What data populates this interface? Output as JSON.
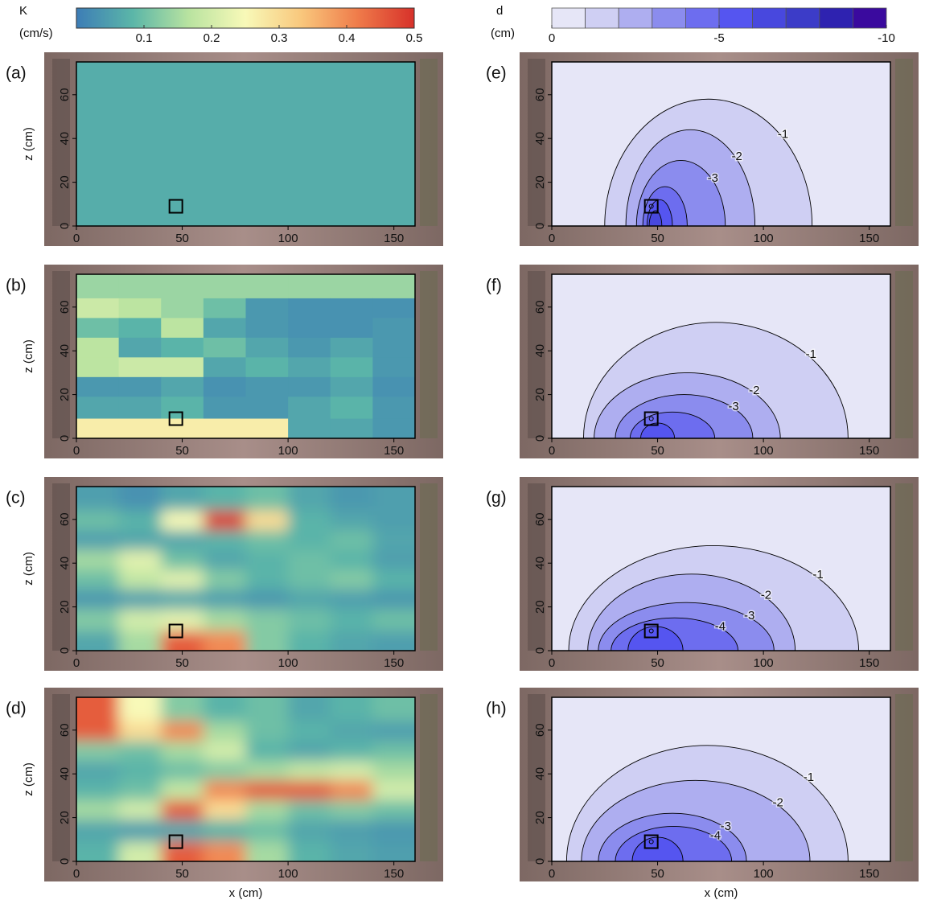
{
  "chart_data": [
    {
      "type": "colorbar",
      "title": "K",
      "unit": "(cm/s)",
      "lim": [
        0,
        0.5
      ],
      "ticks": [
        0.1,
        0.2,
        0.3,
        0.4,
        0.5
      ],
      "colors": [
        "#3d7db6",
        "#5bb6a8",
        "#b9e3a0",
        "#f8f9b8",
        "#f9c77c",
        "#ef7b4a",
        "#d7312a"
      ]
    },
    {
      "type": "colorbar",
      "title": "d",
      "unit": "(cm)",
      "lim": [
        0,
        -10
      ],
      "ticks": [
        0,
        -5,
        -10
      ],
      "boundaries": [
        0,
        -1,
        -2,
        -3,
        -4,
        -5,
        -6,
        -7,
        -8,
        -9,
        -10
      ],
      "colors": [
        "#e6e6f7",
        "#cfcff3",
        "#aeaef0",
        "#8b8cee",
        "#6d6def",
        "#5555f0",
        "#4848de",
        "#3c3cc8",
        "#2e22b0",
        "#3a0a9e"
      ]
    },
    {
      "type": "heatmap",
      "label": "(a)",
      "ylabel": "z (cm)",
      "xlim": [
        0,
        160
      ],
      "ylim": [
        0,
        75
      ],
      "xticks": [
        0,
        50,
        100,
        150
      ],
      "yticks": [
        0,
        20,
        40,
        60
      ],
      "x": [
        0,
        160
      ],
      "z": [
        75,
        0
      ],
      "values": [
        [
          0.07
        ]
      ],
      "source": {
        "x": 47,
        "z": 9
      }
    },
    {
      "type": "heatmap",
      "label": "(b)",
      "ylabel": "z (cm)",
      "xlim": [
        0,
        160
      ],
      "ylim": [
        0,
        75
      ],
      "xticks": [
        0,
        50,
        100,
        150
      ],
      "yticks": [
        0,
        20,
        40,
        60
      ],
      "x": [
        0,
        20,
        40,
        60,
        80,
        100,
        120,
        140,
        160
      ],
      "z": [
        75,
        64,
        55,
        46,
        37,
        28,
        19,
        9,
        0
      ],
      "values": [
        [
          0.14,
          0.14,
          0.14,
          0.14,
          0.14,
          0.14,
          0.14,
          0.14
        ],
        [
          0.19,
          0.17,
          0.14,
          0.1,
          0.04,
          0.03,
          0.03,
          0.03
        ],
        [
          0.1,
          0.08,
          0.17,
          0.06,
          0.04,
          0.03,
          0.03,
          0.04
        ],
        [
          0.17,
          0.06,
          0.08,
          0.1,
          0.06,
          0.04,
          0.06,
          0.04
        ],
        [
          0.17,
          0.19,
          0.19,
          0.06,
          0.08,
          0.06,
          0.08,
          0.04
        ],
        [
          0.04,
          0.04,
          0.06,
          0.03,
          0.04,
          0.04,
          0.06,
          0.03
        ],
        [
          0.06,
          0.06,
          0.08,
          0.04,
          0.04,
          0.06,
          0.08,
          0.04
        ],
        [
          0.27,
          0.27,
          0.27,
          0.27,
          0.27,
          0.06,
          0.06,
          0.04
        ]
      ],
      "source": {
        "x": 47,
        "z": 9
      }
    },
    {
      "type": "heatmap",
      "label": "(c)",
      "ylabel": "z (cm)",
      "xlim": [
        0,
        160
      ],
      "ylim": [
        0,
        75
      ],
      "xticks": [
        0,
        50,
        100,
        150
      ],
      "yticks": [
        0,
        20,
        40,
        60
      ],
      "smooth": true,
      "x": [
        0,
        20,
        40,
        60,
        80,
        100,
        120,
        140,
        160
      ],
      "z": [
        75,
        64,
        55,
        46,
        37,
        28,
        19,
        9,
        0
      ],
      "values": [
        [
          0.05,
          0.03,
          0.06,
          0.08,
          0.1,
          0.06,
          0.04,
          0.05
        ],
        [
          0.1,
          0.08,
          0.25,
          0.48,
          0.3,
          0.08,
          0.06,
          0.05
        ],
        [
          0.05,
          0.06,
          0.06,
          0.08,
          0.1,
          0.08,
          0.1,
          0.06
        ],
        [
          0.15,
          0.22,
          0.1,
          0.06,
          0.08,
          0.1,
          0.08,
          0.05
        ],
        [
          0.1,
          0.18,
          0.22,
          0.12,
          0.08,
          0.1,
          0.12,
          0.08
        ],
        [
          0.04,
          0.05,
          0.06,
          0.05,
          0.04,
          0.06,
          0.05,
          0.04
        ],
        [
          0.12,
          0.2,
          0.22,
          0.15,
          0.12,
          0.1,
          0.08,
          0.1
        ],
        [
          0.06,
          0.15,
          0.45,
          0.4,
          0.12,
          0.08,
          0.06,
          0.05
        ]
      ],
      "source": {
        "x": 47,
        "z": 9
      }
    },
    {
      "type": "heatmap",
      "label": "(d)",
      "ylabel": "z (cm)",
      "xlabel": "x (cm)",
      "xlim": [
        0,
        160
      ],
      "ylim": [
        0,
        75
      ],
      "xticks": [
        0,
        50,
        100,
        150
      ],
      "yticks": [
        0,
        20,
        40,
        60
      ],
      "smooth": true,
      "x": [
        0,
        20,
        40,
        60,
        80,
        100,
        120,
        140,
        160
      ],
      "z": [
        75,
        64,
        55,
        46,
        37,
        28,
        19,
        9,
        0
      ],
      "values": [
        [
          0.45,
          0.25,
          0.12,
          0.08,
          0.1,
          0.06,
          0.08,
          0.1
        ],
        [
          0.45,
          0.3,
          0.4,
          0.15,
          0.1,
          0.08,
          0.06,
          0.05
        ],
        [
          0.12,
          0.1,
          0.15,
          0.2,
          0.08,
          0.06,
          0.08,
          0.1
        ],
        [
          0.06,
          0.08,
          0.1,
          0.12,
          0.15,
          0.18,
          0.2,
          0.15
        ],
        [
          0.08,
          0.1,
          0.18,
          0.4,
          0.45,
          0.45,
          0.4,
          0.2
        ],
        [
          0.15,
          0.2,
          0.45,
          0.3,
          0.15,
          0.1,
          0.12,
          0.1
        ],
        [
          0.06,
          0.05,
          0.06,
          0.08,
          0.1,
          0.06,
          0.05,
          0.04
        ],
        [
          0.08,
          0.2,
          0.45,
          0.4,
          0.15,
          0.08,
          0.06,
          0.05
        ]
      ],
      "source": {
        "x": 47,
        "z": 9
      }
    },
    {
      "type": "contour",
      "label": "(e)",
      "xlim": [
        0,
        160
      ],
      "ylim": [
        0,
        75
      ],
      "xticks": [
        0,
        50,
        100,
        150
      ],
      "yticks": [
        0,
        20,
        40,
        60
      ],
      "contours": [
        {
          "level": -1,
          "xmin": 25,
          "xmax": 123,
          "top": 58
        },
        {
          "level": -2,
          "xmin": 35,
          "xmax": 96,
          "top": 44
        },
        {
          "level": -3,
          "xmin": 40,
          "xmax": 82,
          "top": 30
        },
        {
          "level": -4,
          "xmin": 43,
          "xmax": 64,
          "top": 18
        },
        {
          "level": -5,
          "xmin": 45,
          "xmax": 57,
          "top": 12
        },
        {
          "level": -6,
          "xmin": 46,
          "xmax": 52,
          "top": 7
        }
      ],
      "contour_labels": [
        -1,
        -2,
        -3
      ],
      "source": {
        "x": 47,
        "z": 9
      }
    },
    {
      "type": "contour",
      "label": "(f)",
      "xlim": [
        0,
        160
      ],
      "ylim": [
        0,
        75
      ],
      "xticks": [
        0,
        50,
        100,
        150
      ],
      "yticks": [
        0,
        20,
        40,
        60
      ],
      "contours": [
        {
          "level": -1,
          "xmin": 15,
          "xmax": 140,
          "top": 53
        },
        {
          "level": -2,
          "xmin": 20,
          "xmax": 108,
          "top": 30
        },
        {
          "level": -3,
          "xmin": 30,
          "xmax": 95,
          "top": 20
        },
        {
          "level": -4,
          "xmin": 37,
          "xmax": 77,
          "top": 12
        },
        {
          "level": -5,
          "xmin": 42,
          "xmax": 58,
          "top": 7
        }
      ],
      "contour_labels": [
        -1,
        -2,
        -3
      ],
      "source": {
        "x": 47,
        "z": 9
      }
    },
    {
      "type": "contour",
      "label": "(g)",
      "xlim": [
        0,
        160
      ],
      "ylim": [
        0,
        75
      ],
      "xticks": [
        0,
        50,
        100,
        150
      ],
      "yticks": [
        0,
        20,
        40,
        60
      ],
      "contours": [
        {
          "level": -1,
          "xmin": 8,
          "xmax": 145,
          "top": 48
        },
        {
          "level": -2,
          "xmin": 17,
          "xmax": 115,
          "top": 35
        },
        {
          "level": -3,
          "xmin": 22,
          "xmax": 105,
          "top": 22
        },
        {
          "level": -4,
          "xmin": 28,
          "xmax": 88,
          "top": 15
        },
        {
          "level": -5,
          "xmin": 36,
          "xmax": 62,
          "top": 11
        }
      ],
      "contour_labels": [
        -1,
        -2,
        -3,
        -4
      ],
      "source": {
        "x": 47,
        "z": 9
      }
    },
    {
      "type": "contour",
      "label": "(h)",
      "xlabel": "x (cm)",
      "xlim": [
        0,
        160
      ],
      "ylim": [
        0,
        75
      ],
      "xticks": [
        0,
        50,
        100,
        150
      ],
      "yticks": [
        0,
        20,
        40,
        60
      ],
      "contours": [
        {
          "level": -1,
          "xmin": 7,
          "xmax": 140,
          "top": 53
        },
        {
          "level": -2,
          "xmin": 14,
          "xmax": 122,
          "top": 37
        },
        {
          "level": -3,
          "xmin": 22,
          "xmax": 92,
          "top": 22
        },
        {
          "level": -4,
          "xmin": 30,
          "xmax": 85,
          "top": 16
        },
        {
          "level": -5,
          "xmin": 38,
          "xmax": 62,
          "top": 11
        }
      ],
      "contour_labels": [
        -1,
        -2,
        -3,
        -4
      ],
      "source": {
        "x": 47,
        "z": 9
      }
    }
  ]
}
